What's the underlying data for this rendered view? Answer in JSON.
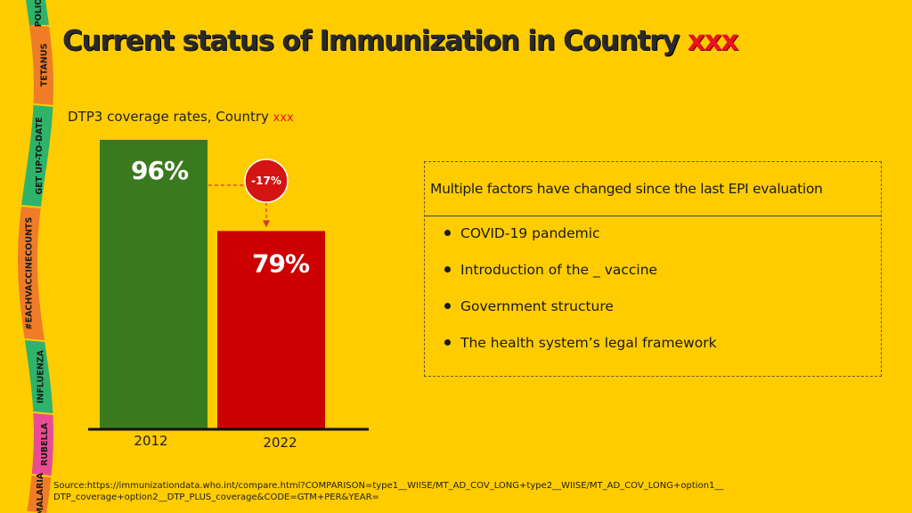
{
  "title": {
    "main": "Current status of Immunization in Country",
    "highlight": "xxx"
  },
  "ribbon": {
    "words": [
      "POLIO",
      "TETANUS",
      "GET UP-TO-DATE",
      "#EACHVACCINECOUNTS",
      "INFLUENZA",
      "RUBELLA",
      "MALARIA"
    ]
  },
  "chart_caption": {
    "text": "DTP3 coverage rates, Country",
    "highlight": "xxx"
  },
  "chart_data": {
    "type": "bar",
    "categories": [
      "2012",
      "2022"
    ],
    "values": [
      96,
      79
    ],
    "data_labels": [
      "96%",
      "79%"
    ],
    "colors": [
      "#3a7a1f",
      "#cc0000"
    ],
    "change_label": "-17%",
    "title": "DTP3 coverage rates, Country xxx",
    "xlabel": "",
    "ylabel": "",
    "ylim": [
      0,
      100
    ],
    "grid": false
  },
  "factors": {
    "heading": "Multiple factors have changed since the last EPI evaluation",
    "items": [
      "COVID-19 pandemic",
      "Introduction of the _ vaccine",
      "Government structure",
      "The health system’s legal framework"
    ]
  },
  "source": {
    "line1": "Source:https://immunizationdata.who.int/compare.html?COMPARISON=type1__WIISE/MT_AD_COV_LONG+type2__WIISE/MT_AD_COV_LONG+option1__",
    "line2": "DTP_coverage+option2__DTP_PLUS_coverage&CODE=GTM+PER&YEAR="
  },
  "colors": {
    "background": "#ffcc00",
    "accent_red": "#e8151b",
    "bar_green": "#3a7a1f",
    "bar_red": "#cc0000"
  }
}
